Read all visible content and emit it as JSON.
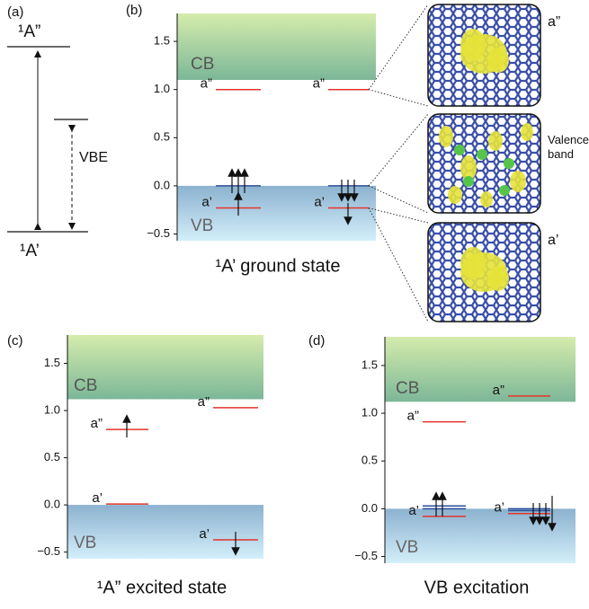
{
  "panel_a": {
    "label": "(a)",
    "upper_state": "¹A”",
    "lower_state": "¹A’",
    "arrow_label": "VBE"
  },
  "panels": [
    {
      "label": "(b)",
      "ylim": [
        -0.57,
        1.79
      ],
      "yticks": [
        {
          "value": 1.5,
          "label": "1.5"
        },
        {
          "value": 1.0,
          "label": "1.0"
        },
        {
          "value": 0.5,
          "label": "0.5"
        },
        {
          "value": 0.0,
          "label": "0.0"
        },
        {
          "value": -0.5,
          "label": "−0.5"
        }
      ],
      "cb_bottom": 1.1,
      "band_labels": [
        "CB",
        "VB"
      ],
      "columns": [
        {
          "levels": [
            {
              "label": "a”",
              "value": 1.0,
              "color": "#e3342c"
            },
            {
              "value": 0.0,
              "color": "#2c4e9c"
            },
            {
              "label": "a’",
              "value": -0.23,
              "color": "#e3342c"
            }
          ]
        },
        {
          "levels": [
            {
              "label": "a”",
              "value": 1.0,
              "color": "#e3342c"
            },
            {
              "value": 0.0,
              "color": "#2c4e9c"
            },
            {
              "label": "a’",
              "value": -0.23,
              "color": "#e3342c"
            }
          ]
        }
      ],
      "caption": "¹A’ ground state"
    },
    {
      "label": "(c)",
      "ylim": [
        -0.57,
        1.8
      ],
      "yticks": [
        {
          "value": 1.5,
          "label": "1.5"
        },
        {
          "value": 1.0,
          "label": "1.0"
        },
        {
          "value": 0.5,
          "label": "0.5"
        },
        {
          "value": 0.0,
          "label": "0.0"
        },
        {
          "value": -0.5,
          "label": "−0.5"
        }
      ],
      "cb_bottom": 1.12,
      "band_labels": [
        "CB",
        "VB"
      ],
      "columns": [
        {
          "levels": [
            {
              "label": "a”",
              "value": 0.8,
              "color": "#e3342c"
            },
            {
              "label": "a’",
              "value": 0.01,
              "color": "#e3342c"
            }
          ]
        },
        {
          "levels": [
            {
              "label": "a”",
              "value": 1.03,
              "color": "#e3342c"
            },
            {
              "label": "a’",
              "value": -0.37,
              "color": "#e3342c"
            }
          ]
        }
      ],
      "caption": "¹A” excited state"
    },
    {
      "label": "(d)",
      "ylim": [
        -0.57,
        1.8
      ],
      "yticks": [
        {
          "value": 1.5,
          "label": "1.5"
        },
        {
          "value": 1.0,
          "label": "1.0"
        },
        {
          "value": 0.5,
          "label": "0.5"
        },
        {
          "value": 0.0,
          "label": "0.0"
        },
        {
          "value": -0.5,
          "label": "−0.5"
        }
      ],
      "cb_bottom": 1.12,
      "band_labels": [
        "CB",
        "VB"
      ],
      "columns": [
        {
          "levels": [
            {
              "label": "a”",
              "value": 0.91,
              "color": "#e3342c"
            },
            {
              "value": 0.03,
              "color": "#2c4e9c"
            },
            {
              "value": 0.0,
              "color": "#2c4e9c"
            },
            {
              "label": "a’",
              "value": -0.08,
              "color": "#e3342c"
            }
          ]
        },
        {
          "levels": [
            {
              "label": "a”",
              "value": 1.18,
              "color": "#e3342c"
            },
            {
              "value": 0.0,
              "color": "#2c4e9c"
            },
            {
              "value": -0.02,
              "color": "#2c4e9c"
            },
            {
              "label": "a’",
              "value": -0.05,
              "color": "#e3342c"
            }
          ]
        }
      ],
      "caption": "VB excitation"
    }
  ],
  "insets": [
    {
      "label": [
        "a”"
      ]
    },
    {
      "label": [
        "Valence",
        "band"
      ]
    },
    {
      "label": [
        "a’"
      ]
    }
  ]
}
